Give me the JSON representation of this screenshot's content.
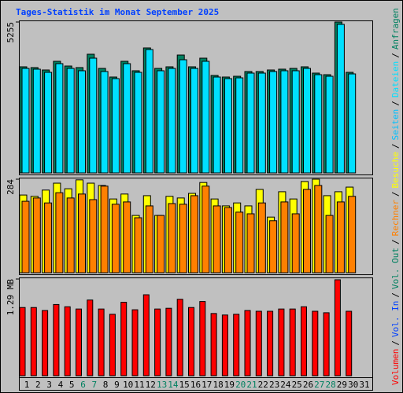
{
  "chart_data": [
    {
      "type": "bar",
      "title": "Tages-Statistik im Monat September 2025",
      "ylim": [
        0,
        5255
      ],
      "yticks": [
        5255
      ],
      "series": [
        {
          "name": "Anfragen",
          "color": "#008060",
          "values": [
            3695,
            3668,
            3585,
            3887,
            3722,
            3668,
            4133,
            3640,
            3339,
            3887,
            3558,
            4352,
            3640,
            3695,
            4105,
            3695,
            3996,
            3394,
            3339,
            3366,
            3531,
            3531,
            3585,
            3613,
            3640,
            3695,
            3476,
            3421,
            5255,
            3503,
            null
          ]
        },
        {
          "name": "Dateien",
          "color": "#00e0ff",
          "values": [
            3640,
            3613,
            3503,
            3805,
            3640,
            3558,
            3996,
            3531,
            3284,
            3805,
            3503,
            4297,
            3558,
            3640,
            3941,
            3640,
            3887,
            3339,
            3284,
            3311,
            3476,
            3476,
            3531,
            3558,
            3558,
            3640,
            3421,
            3366,
            5173,
            3448,
            null
          ]
        }
      ],
      "legend_extra": [
        {
          "name": "Seiten",
          "color": "#00c0ff"
        }
      ]
    },
    {
      "type": "bar",
      "ylim": [
        0,
        284
      ],
      "yticks": [
        284
      ],
      "series": [
        {
          "name": "Besuche",
          "color": "#ffff00",
          "values": [
            236,
            232,
            251,
            272,
            255,
            282,
            272,
            265,
            224,
            239,
            174,
            234,
            174,
            232,
            227,
            241,
            274,
            224,
            203,
            212,
            203,
            253,
            169,
            246,
            224,
            277,
            284,
            234,
            246,
            260,
            null
          ]
        },
        {
          "name": "Rechner",
          "color": "#ff8000",
          "values": [
            217,
            227,
            212,
            243,
            227,
            239,
            222,
            263,
            208,
            215,
            167,
            203,
            174,
            210,
            208,
            234,
            263,
            203,
            198,
            184,
            179,
            212,
            158,
            215,
            179,
            253,
            265,
            174,
            215,
            232,
            null
          ]
        }
      ]
    },
    {
      "type": "bar",
      "ylim": [
        0,
        1.29
      ],
      "yticks": [
        {
          "value": 1.29,
          "label": "1.29 MB"
        }
      ],
      "categories": [
        "1",
        "2",
        "3",
        "4",
        "5",
        "6",
        "7",
        "8",
        "9",
        "10",
        "11",
        "12",
        "13",
        "14",
        "15",
        "16",
        "17",
        "18",
        "19",
        "20",
        "21",
        "22",
        "23",
        "24",
        "25",
        "26",
        "27",
        "28",
        "29",
        "30",
        "31"
      ],
      "category_label_colors": [
        "#000000",
        "#000000",
        "#000000",
        "#000000",
        "#000000",
        "#008060",
        "#008060",
        "#000000",
        "#000000",
        "#000000",
        "#000000",
        "#000000",
        "#008060",
        "#008060",
        "#000000",
        "#000000",
        "#000000",
        "#000000",
        "#000000",
        "#008060",
        "#008060",
        "#000000",
        "#000000",
        "#000000",
        "#000000",
        "#000000",
        "#008060",
        "#008060",
        "#000000",
        "#000000",
        "#000000"
      ],
      "series": [
        {
          "name": "Volumen",
          "color": "#ff0000",
          "values": [
            0.91,
            0.91,
            0.87,
            0.95,
            0.92,
            0.89,
            1.01,
            0.89,
            0.82,
            0.98,
            0.88,
            1.08,
            0.89,
            0.9,
            1.02,
            0.91,
            0.99,
            0.83,
            0.81,
            0.82,
            0.87,
            0.86,
            0.86,
            0.89,
            0.89,
            0.92,
            0.86,
            0.84,
            1.28,
            0.86,
            null
          ]
        }
      ],
      "legend_extra": [
        {
          "name": "Vol. In",
          "color": "#0040ff"
        },
        {
          "name": "Vol. Out",
          "color": "#008060"
        }
      ],
      "legend_separator": "/"
    }
  ]
}
